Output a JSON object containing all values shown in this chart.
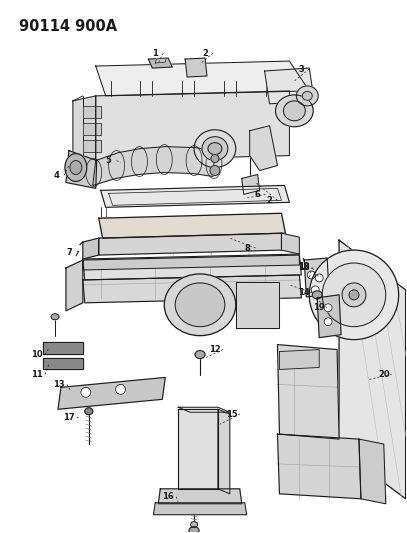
{
  "title": "90114 900A",
  "bg_color": "#ffffff",
  "line_color": "#1a1a1a",
  "fig_width": 4.07,
  "fig_height": 5.33,
  "dpi": 100,
  "title_fontsize": 10.5,
  "label_fontsize": 6.0
}
